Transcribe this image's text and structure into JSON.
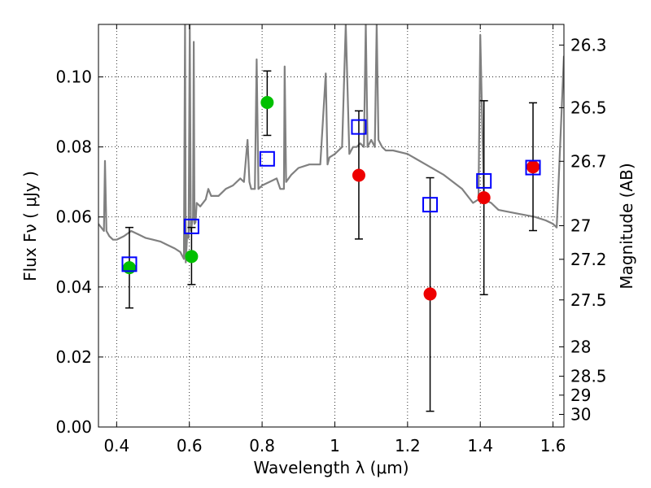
{
  "chart_data": {
    "type": "scatter",
    "xlabel": "Wavelength  λ (μm)",
    "ylabel": "Flux  Fν  ( μJy )",
    "y2label": "Magnitude (AB)",
    "xlim": [
      0.35,
      1.63
    ],
    "ylim": [
      0.0,
      0.115
    ],
    "grid": true,
    "x_ticks": [
      0.4,
      0.6,
      0.8,
      1.0,
      1.2,
      1.4,
      1.6
    ],
    "x_tick_labels": [
      "0.4",
      "0.6",
      "0.8",
      "1",
      "1.2",
      "1.4",
      "1.6"
    ],
    "y_ticks": [
      0.0,
      0.02,
      0.04,
      0.06,
      0.08,
      0.1
    ],
    "y_tick_labels": [
      "0.00",
      "0.02",
      "0.04",
      "0.06",
      "0.08",
      "0.10"
    ],
    "y2_ticks": [
      {
        "label": "26.3",
        "flux": 0.1091
      },
      {
        "label": "26.5",
        "flux": 0.0912
      },
      {
        "label": "26.7",
        "flux": 0.0759
      },
      {
        "label": "27",
        "flux": 0.0575
      },
      {
        "label": "27.2",
        "flux": 0.0479
      },
      {
        "label": "27.5",
        "flux": 0.0363
      },
      {
        "label": "28",
        "flux": 0.0229
      },
      {
        "label": "28.5",
        "flux": 0.0145
      },
      {
        "label": "29",
        "flux": 0.0091
      },
      {
        "label": "30",
        "flux": 0.0036
      }
    ],
    "colors": {
      "model": "#808080",
      "model_flux": "#0000ff",
      "detection": "#00c000",
      "photometry_red": "#ee0000",
      "errorbar": "#000000"
    },
    "series": [
      {
        "marker": "circle",
        "color": "#00c000",
        "points": [
          {
            "x": 0.435,
            "y": 0.0455,
            "err_low": 0.034,
            "err_high": 0.057
          },
          {
            "x": 0.606,
            "y": 0.0487,
            "err_low": 0.0407,
            "err_high": 0.057
          },
          {
            "x": 0.814,
            "y": 0.0927,
            "err_low": 0.0833,
            "err_high": 0.1017
          }
        ]
      },
      {
        "marker": "circle",
        "color": "#ee0000",
        "points": [
          {
            "x": 1.066,
            "y": 0.0719,
            "err_low": 0.0537,
            "err_high": 0.0903
          },
          {
            "x": 1.262,
            "y": 0.038,
            "err_low": 0.0045,
            "err_high": 0.0712
          },
          {
            "x": 1.41,
            "y": 0.0655,
            "err_low": 0.0378,
            "err_high": 0.0932
          },
          {
            "x": 1.545,
            "y": 0.0743,
            "err_low": 0.0561,
            "err_high": 0.0926
          }
        ]
      },
      {
        "marker": "square",
        "color": "#0000ff",
        "points": [
          {
            "x": 0.435,
            "y": 0.0465
          },
          {
            "x": 0.606,
            "y": 0.0573
          },
          {
            "x": 0.814,
            "y": 0.0766
          },
          {
            "x": 1.066,
            "y": 0.0857
          },
          {
            "x": 1.262,
            "y": 0.0635
          },
          {
            "x": 1.41,
            "y": 0.0703
          },
          {
            "x": 1.545,
            "y": 0.0741
          }
        ]
      },
      {
        "type": "line",
        "color": "#808080",
        "x": [
          0.35,
          0.365,
          0.368,
          0.372,
          0.38,
          0.39,
          0.4,
          0.42,
          0.44,
          0.46,
          0.48,
          0.5,
          0.52,
          0.54,
          0.56,
          0.575,
          0.585,
          0.588,
          0.59,
          0.594,
          0.598,
          0.601,
          0.604,
          0.61,
          0.612,
          0.614,
          0.617,
          0.62,
          0.63,
          0.645,
          0.652,
          0.66,
          0.68,
          0.7,
          0.72,
          0.74,
          0.75,
          0.76,
          0.765,
          0.77,
          0.78,
          0.785,
          0.79,
          0.8,
          0.82,
          0.84,
          0.85,
          0.86,
          0.862,
          0.866,
          0.88,
          0.9,
          0.93,
          0.96,
          0.975,
          0.98,
          0.985,
          1.0,
          1.02,
          1.03,
          1.04,
          1.05,
          1.06,
          1.07,
          1.08,
          1.085,
          1.09,
          1.1,
          1.11,
          1.115,
          1.12,
          1.13,
          1.14,
          1.16,
          1.2,
          1.25,
          1.3,
          1.35,
          1.38,
          1.395,
          1.4,
          1.41,
          1.43,
          1.45,
          1.5,
          1.55,
          1.58,
          1.6,
          1.61,
          1.63
        ],
        "y": [
          0.058,
          0.056,
          0.076,
          0.056,
          0.0545,
          0.0535,
          0.0535,
          0.0545,
          0.056,
          0.055,
          0.054,
          0.0535,
          0.053,
          0.052,
          0.051,
          0.05,
          0.048,
          0.115,
          0.047,
          0.055,
          0.054,
          0.115,
          0.056,
          0.06,
          0.11,
          0.058,
          0.0585,
          0.064,
          0.063,
          0.065,
          0.068,
          0.066,
          0.066,
          0.068,
          0.069,
          0.071,
          0.07,
          0.082,
          0.07,
          0.068,
          0.068,
          0.105,
          0.068,
          0.069,
          0.07,
          0.071,
          0.068,
          0.068,
          0.103,
          0.07,
          0.072,
          0.074,
          0.075,
          0.075,
          0.101,
          0.075,
          0.077,
          0.078,
          0.08,
          0.115,
          0.078,
          0.08,
          0.08,
          0.081,
          0.08,
          0.115,
          0.08,
          0.082,
          0.08,
          0.115,
          0.082,
          0.08,
          0.079,
          0.079,
          0.078,
          0.075,
          0.072,
          0.068,
          0.064,
          0.065,
          0.112,
          0.065,
          0.064,
          0.062,
          0.061,
          0.06,
          0.059,
          0.058,
          0.057,
          0.106
        ]
      }
    ]
  }
}
